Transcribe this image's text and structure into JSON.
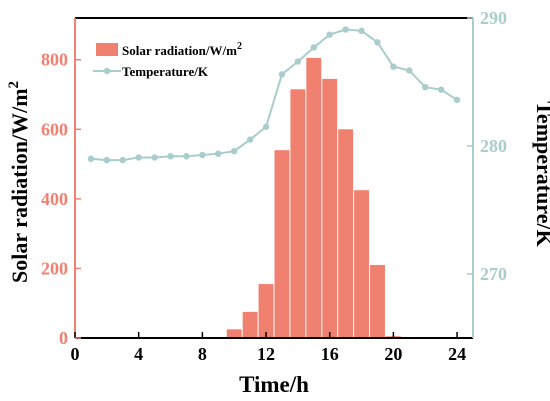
{
  "chart_data": {
    "type": "bar+line",
    "xlabel": "Time/h",
    "ylabel_left": "Solar radiation/W/m2",
    "ylabel_left_main": "Solar radiation/W/m",
    "ylabel_left_sup": "2",
    "ylabel_right": "Temperature/K",
    "xlim": [
      0,
      25
    ],
    "ylim_left": [
      0,
      920
    ],
    "ylim_right": [
      265,
      290
    ],
    "x_ticks": [
      0,
      4,
      8,
      12,
      16,
      20,
      24
    ],
    "y_left_ticks": [
      0,
      200,
      400,
      600,
      800
    ],
    "y_right_ticks": [
      270,
      280,
      290
    ],
    "grid": false,
    "legend_placement": "top-left",
    "series": [
      {
        "name": "Solar radiation/W/m2",
        "name_main": "Solar radiation/W/m",
        "name_sup": "2",
        "kind": "bar",
        "axis": "left",
        "color": "#F08070",
        "x": [
          1,
          2,
          3,
          4,
          5,
          6,
          7,
          8,
          9,
          10,
          11,
          12,
          13,
          14,
          15,
          16,
          17,
          18,
          19,
          20,
          21,
          22,
          23,
          24
        ],
        "values": [
          0,
          0,
          0,
          0,
          0,
          0,
          0,
          0,
          0,
          25,
          75,
          155,
          540,
          715,
          805,
          745,
          600,
          425,
          210,
          5,
          0,
          0,
          0,
          0
        ]
      },
      {
        "name": "Temperature/K",
        "kind": "line",
        "axis": "right",
        "color": "#A9CCCC",
        "x": [
          1,
          2,
          3,
          4,
          5,
          6,
          7,
          8,
          9,
          10,
          11,
          12,
          13,
          14,
          15,
          16,
          17,
          18,
          19,
          20,
          21,
          22,
          23,
          24
        ],
        "values": [
          279.0,
          278.9,
          278.9,
          279.1,
          279.1,
          279.2,
          279.2,
          279.3,
          279.4,
          279.6,
          280.5,
          281.5,
          285.6,
          286.6,
          287.7,
          288.7,
          289.1,
          289.0,
          288.1,
          286.2,
          285.9,
          284.6,
          284.4,
          283.6
        ]
      }
    ]
  },
  "colors": {
    "bar": "#F08070",
    "line": "#A9CCCC",
    "left_axis": "#F08070",
    "right_axis": "#A9CCCC",
    "text": "#000000"
  }
}
